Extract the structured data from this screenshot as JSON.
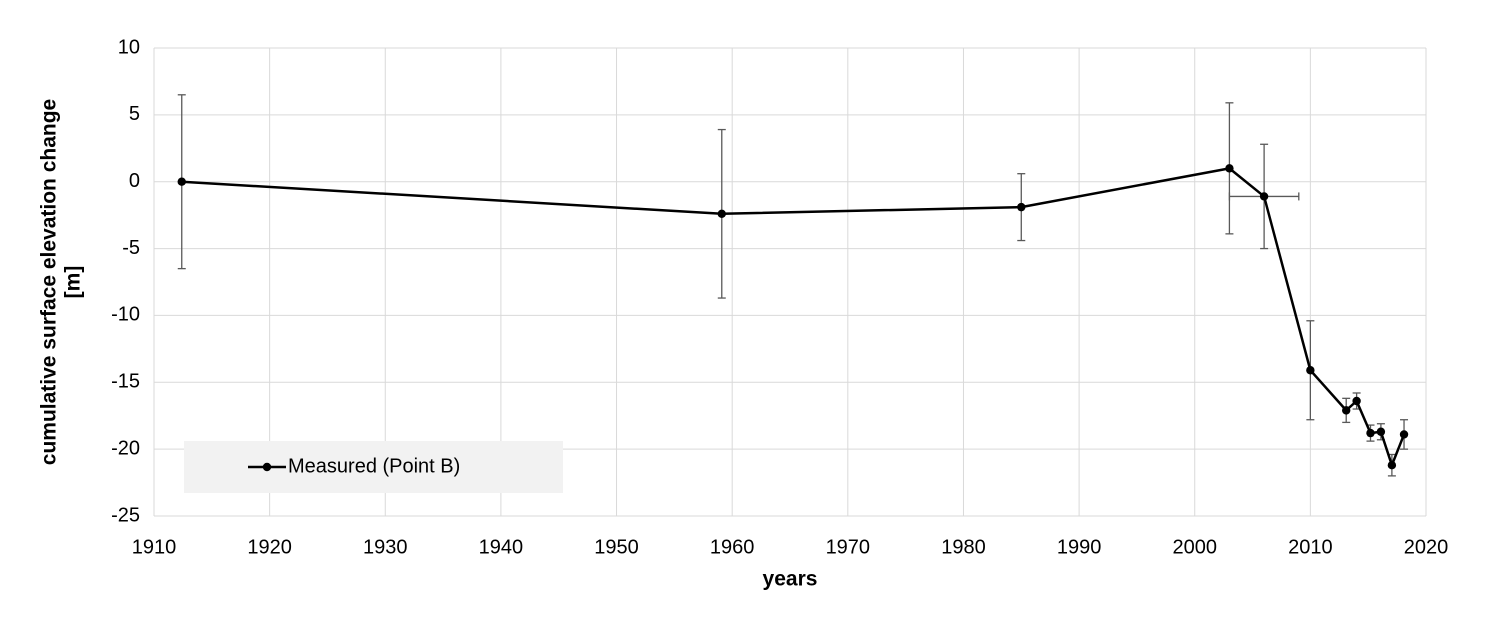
{
  "chart_data": {
    "type": "line",
    "x_label": "years",
    "y_label": [
      "cumulative surface elevation change",
      "[m]"
    ],
    "x": [
      1912.4,
      1959.1,
      1985,
      2003,
      2006,
      2010,
      2013.1,
      2014,
      2015.2,
      2016.1,
      2017.05,
      2018.1
    ],
    "series": [
      {
        "name": "Measured (Point B)",
        "color": "#000000",
        "values": [
          0,
          -2.4,
          -1.9,
          1.0,
          -1.1,
          -14.1,
          -17.1,
          -16.4,
          -18.8,
          -18.7,
          -21.2,
          -18.9
        ],
        "error": [
          6.5,
          6.3,
          2.5,
          4.9,
          3.9,
          3.7,
          0.9,
          0.6,
          0.6,
          0.6,
          0.8,
          1.1
        ],
        "xerror": [
          null,
          null,
          null,
          null,
          3,
          null,
          null,
          null,
          null,
          null,
          null,
          null
        ]
      }
    ],
    "xlim": [
      1910,
      2020
    ],
    "xticks": [
      1910,
      1920,
      1930,
      1940,
      1950,
      1960,
      1970,
      1980,
      1990,
      2000,
      2010,
      2020
    ],
    "ylim": [
      -25,
      10
    ],
    "yticks": [
      -25,
      -20,
      -15,
      -10,
      -5,
      0,
      5,
      10
    ],
    "grid": true,
    "legend": "lower left"
  }
}
